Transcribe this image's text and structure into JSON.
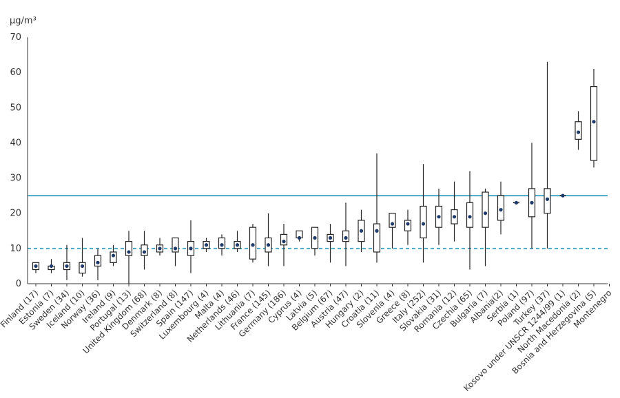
{
  "chart_data": {
    "type": "boxplot",
    "ylabel": "μg/m³",
    "ylim": [
      0,
      70
    ],
    "yticks": [
      0,
      10,
      20,
      30,
      40,
      50,
      60,
      70
    ],
    "grid": false,
    "reference_lines": [
      {
        "value": 25,
        "style": "solid",
        "color": "#4aa8c7"
      },
      {
        "value": 10,
        "style": "dashed",
        "color": "#4aa8c7"
      }
    ],
    "colors": {
      "box": "#222222",
      "marker": "#1f3a68",
      "axis": "#333333"
    },
    "categories": [
      "Finland (17)",
      "Estonia (7)",
      "Sweden (34)",
      "Iceland (10)",
      "Norway (36)",
      "Ireland (9)",
      "Portugal (13)",
      "United Kingdom (68)",
      "Denmark (8)",
      "Switzerland (8)",
      "Spain (147)",
      "Luxembourg (4)",
      "Malta (4)",
      "Netherlands (46)",
      "Lithuania (7)",
      "France (145)",
      "Germany (186)",
      "Cyprus (4)",
      "Latvia (5)",
      "Belgium (67)",
      "Austria (47)",
      "Hungary (2)",
      "Croatia (11)",
      "Slovenia (4)",
      "Greece (8)",
      "Italy (252)",
      "Slovakia (31)",
      "Romania (12)",
      "Czechia (65)",
      "Bulgaria (7)",
      "Albania(2)",
      "Serbia (1)",
      "Poland (97)",
      "Turkey (37)",
      "Kosovo under UNSCR 1244/99 (1)",
      "North Macedonia (2)",
      "Bosnia and Herzegovina (5)",
      "Montenegro"
    ],
    "series": [
      {
        "min": [
          3,
          3,
          1,
          2,
          1,
          5,
          0,
          4,
          8,
          5,
          3,
          9,
          8,
          9,
          6,
          5,
          5,
          12,
          8,
          6,
          5,
          9,
          6,
          10,
          11,
          6,
          11,
          12,
          4,
          5,
          14,
          23,
          10,
          10,
          25,
          38,
          33,
          null
        ],
        "q1": [
          4,
          4,
          4,
          3,
          5,
          6,
          8,
          8,
          9,
          9,
          8,
          10,
          10,
          10,
          7,
          9,
          11,
          13,
          10,
          12,
          12,
          12,
          9,
          16,
          15,
          13,
          16,
          17,
          16,
          16,
          18,
          23,
          19,
          20,
          25,
          41,
          35,
          null
        ],
        "median": [
          5,
          5,
          5,
          5,
          6,
          8,
          9,
          9,
          10,
          10,
          10,
          11,
          11,
          11,
          11,
          11,
          12,
          13,
          13,
          13,
          13,
          15,
          15,
          17,
          17,
          17,
          19,
          19,
          19,
          20,
          21,
          23,
          23,
          24,
          25,
          43,
          46,
          null
        ],
        "q3": [
          6,
          5,
          6,
          6,
          8,
          9,
          12,
          11,
          11,
          13,
          12,
          12,
          13,
          12,
          16,
          13,
          14,
          15,
          16,
          14,
          15,
          18,
          17,
          20,
          18,
          22,
          22,
          21,
          23,
          26,
          25,
          23,
          27,
          27,
          25,
          46,
          56,
          null
        ],
        "max": [
          6,
          7,
          11,
          13,
          10,
          11,
          15,
          15,
          13,
          13,
          18,
          13,
          14,
          15,
          17,
          20,
          17,
          15,
          16,
          17,
          23,
          21,
          37,
          20,
          21,
          34,
          27,
          29,
          32,
          27,
          29,
          23,
          40,
          63,
          25,
          49,
          61,
          null
        ]
      }
    ]
  }
}
